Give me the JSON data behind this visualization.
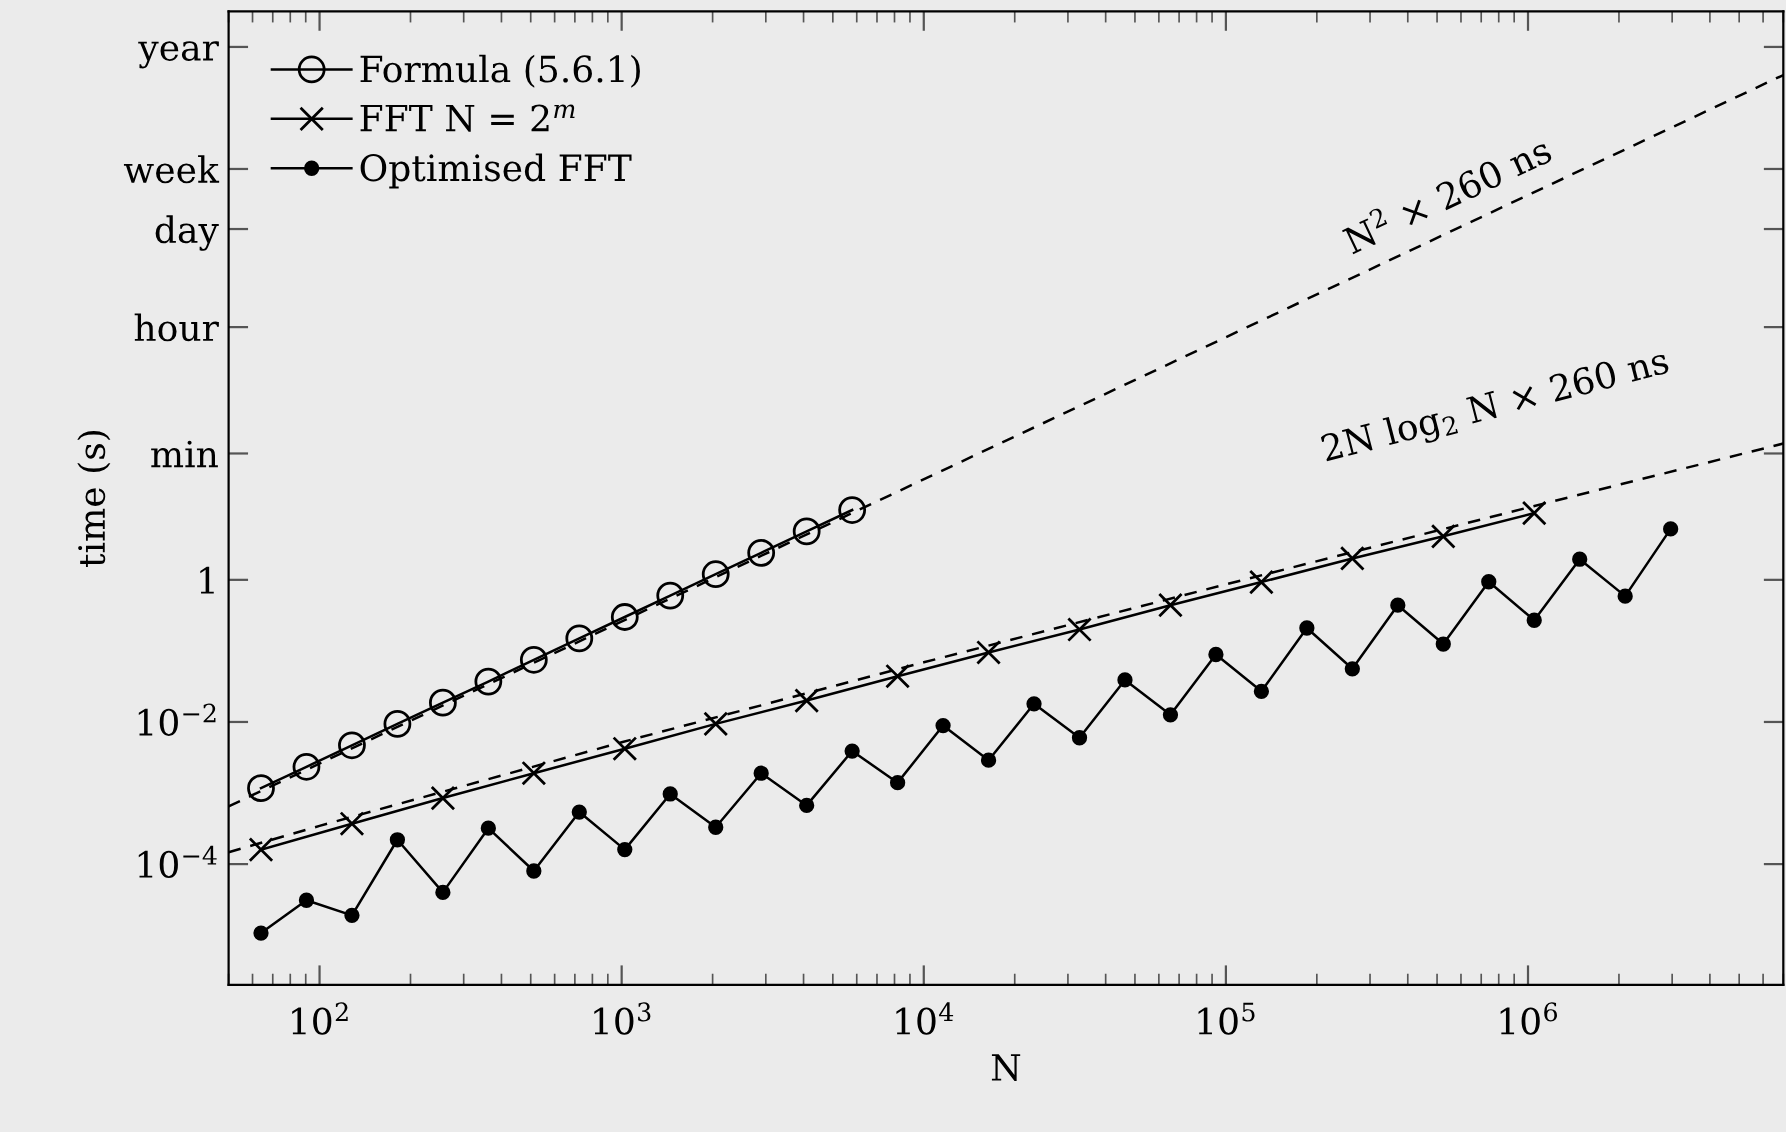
{
  "chart_data": {
    "type": "line",
    "xlabel": "N",
    "ylabel": "time (s)",
    "log": "xy",
    "grid": false,
    "legend": "top left",
    "xlim": [
      50,
      7000000
    ],
    "ylim": [
      2e-06,
      100000000
    ],
    "xticks": [
      {
        "value": 100,
        "label": "10$^{2}$"
      },
      {
        "value": 1000,
        "label": "10$^{3}$"
      },
      {
        "value": 10000,
        "label": "10$^{4}$"
      },
      {
        "value": 100000,
        "label": "10$^{5}$"
      },
      {
        "value": 1000000,
        "label": "10$^{6}$"
      }
    ],
    "yticks": [
      {
        "value": 0.0001,
        "label": "10$^{−4}$"
      },
      {
        "value": 0.01,
        "label": "10$^{−2}$"
      },
      1,
      {
        "value": 60,
        "label": "min"
      },
      {
        "value": 3600,
        "label": "hour"
      },
      {
        "value": 86400,
        "label": "day"
      },
      {
        "value": 604800,
        "label": "week"
      },
      {
        "value": 31536000,
        "label": "year"
      }
    ],
    "series": [
      {
        "name": "Formula (5.6.1)",
        "color": "#000000",
        "marker": "circle",
        "line_style": "solid",
        "x": [
          64,
          90.5,
          128,
          181,
          256,
          362,
          512,
          724,
          1024,
          1448,
          2048,
          2896,
          4096,
          5793
        ],
        "values": [
          0.00117,
          0.00234,
          0.0047,
          0.0094,
          0.0187,
          0.037,
          0.075,
          0.15,
          0.3,
          0.6,
          1.2,
          2.4,
          4.8,
          9.6
        ]
      },
      {
        "name": "FFT N = 2$^{m}$",
        "color": "#000000",
        "marker": "cross",
        "line_style": "solid",
        "x": [
          64,
          128,
          256,
          512,
          1024,
          2048,
          4096,
          8192,
          16384,
          32768,
          65536,
          131072,
          262144,
          524288,
          1048576
        ],
        "values": [
          0.00016,
          0.00037,
          0.00085,
          0.0019,
          0.0042,
          0.0094,
          0.02,
          0.044,
          0.095,
          0.2,
          0.44,
          0.93,
          2,
          4.1,
          8.7
        ]
      },
      {
        "name": "Optimised FFT",
        "color": "#000000",
        "marker": "point",
        "line_style": "solid",
        "x": [
          64,
          90.5,
          128,
          181,
          256,
          362,
          512,
          724,
          1024,
          1448,
          2048,
          2896,
          4096,
          5793,
          8192,
          11585,
          16384,
          23170,
          32768,
          46341,
          65536,
          92682,
          131072,
          185364,
          262144,
          370728,
          524288,
          741455,
          1048576,
          1482910,
          2097152,
          2965820
        ],
        "values": [
          1.07e-05,
          3.1e-05,
          1.9e-05,
          0.00022,
          4e-05,
          0.00032,
          8e-05,
          0.00054,
          0.00016,
          0.00097,
          0.00033,
          0.0019,
          0.00067,
          0.0039,
          0.0014,
          0.0089,
          0.0029,
          0.018,
          0.006,
          0.039,
          0.0126,
          0.089,
          0.027,
          0.21,
          0.056,
          0.44,
          0.125,
          0.94,
          0.27,
          1.95,
          0.59,
          5.2
        ]
      },
      {
        "color": "#000000",
        "marker": "none",
        "line_style": "dashed",
        "x": [
          50,
          7000000
        ],
        "values": [
          0.00065,
          12700000
        ]
      },
      {
        "color": "#000000",
        "marker": "none",
        "line_style": "dashed",
        "x": [
          50,
          100,
          1000,
          10000,
          100000,
          1000000,
          7000000
        ],
        "values": [
          0.000147,
          0.000345,
          0.00518,
          0.0691,
          0.864,
          10.4,
          82.8
        ]
      }
    ],
    "annotations": [
      "N$^{2}$ × 260 ns",
      "2N log$_{2}$ N × 260 ns"
    ]
  }
}
